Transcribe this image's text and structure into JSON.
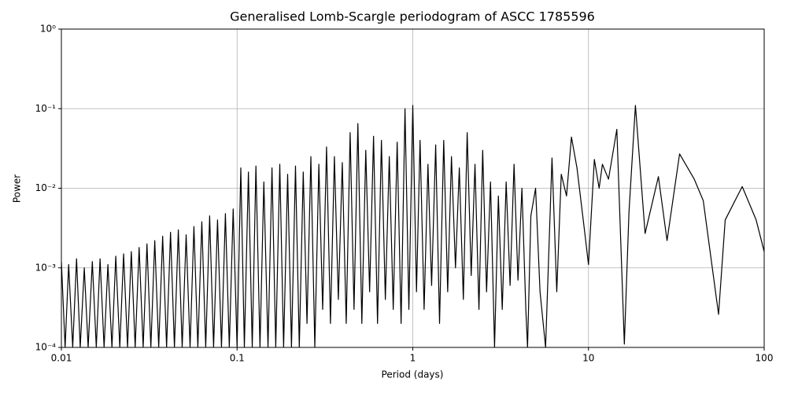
{
  "chart_data": {
    "type": "line",
    "title": "Generalised Lomb-Scargle periodogram of ASCC 1785596",
    "x_label": "Period (days)",
    "y_label": "Power",
    "x_scale": "log",
    "y_scale": "log",
    "grid": true,
    "xlim": [
      0.01,
      100
    ],
    "ylim": [
      0.0001,
      1
    ],
    "xticks": [
      0.01,
      0.1,
      1,
      10,
      100
    ],
    "yticks": [
      {
        "value": 0.0001,
        "label": "10⁻⁴"
      },
      {
        "value": 0.001,
        "label": "10⁻³"
      },
      {
        "value": 0.01,
        "label": "10⁻²"
      },
      {
        "value": 0.1,
        "label": "10⁻¹"
      },
      {
        "value": 1,
        "label": "10⁰"
      }
    ],
    "color": "#000000",
    "x": [
      0.01,
      0.0105,
      0.011,
      0.0116,
      0.0122,
      0.0128,
      0.0135,
      0.0142,
      0.015,
      0.0158,
      0.0166,
      0.0175,
      0.0184,
      0.0194,
      0.0204,
      0.0215,
      0.0226,
      0.0238,
      0.025,
      0.0263,
      0.0277,
      0.0292,
      0.0307,
      0.0323,
      0.034,
      0.0358,
      0.0377,
      0.0397,
      0.0418,
      0.044,
      0.0463,
      0.0487,
      0.0513,
      0.054,
      0.0568,
      0.0598,
      0.063,
      0.0663,
      0.0698,
      0.0735,
      0.0774,
      0.0815,
      0.0858,
      0.0903,
      0.095,
      0.1,
      0.105,
      0.11,
      0.116,
      0.122,
      0.128,
      0.135,
      0.142,
      0.15,
      0.158,
      0.166,
      0.175,
      0.184,
      0.194,
      0.204,
      0.215,
      0.226,
      0.238,
      0.25,
      0.263,
      0.277,
      0.292,
      0.307,
      0.323,
      0.34,
      0.358,
      0.377,
      0.397,
      0.418,
      0.44,
      0.463,
      0.487,
      0.513,
      0.54,
      0.568,
      0.598,
      0.63,
      0.663,
      0.698,
      0.735,
      0.774,
      0.815,
      0.858,
      0.903,
      0.95,
      1.0,
      1.05,
      1.1,
      1.16,
      1.22,
      1.28,
      1.35,
      1.42,
      1.5,
      1.58,
      1.66,
      1.75,
      1.84,
      1.94,
      2.04,
      2.15,
      2.26,
      2.38,
      2.5,
      2.63,
      2.77,
      2.92,
      3.07,
      3.23,
      3.4,
      3.58,
      3.77,
      3.97,
      4.18,
      4.4,
      4.5,
      4.7,
      5.0,
      5.3,
      5.7,
      6.2,
      6.6,
      7,
      7.5,
      8,
      8.6,
      9.5,
      10,
      10.8,
      11.5,
      12,
      13,
      14.5,
      16,
      17,
      18.5,
      21,
      25,
      28,
      33,
      40,
      45,
      55,
      60,
      75,
      90,
      100
    ],
    "values": [
      0.0012,
      0.0001,
      0.0011,
      0.0001,
      0.0013,
      0.0001,
      0.001,
      0.0001,
      0.0012,
      0.0001,
      0.0013,
      0.0001,
      0.0011,
      0.0001,
      0.0014,
      0.0001,
      0.0015,
      0.0001,
      0.0016,
      0.0001,
      0.0018,
      0.0001,
      0.002,
      0.0001,
      0.0022,
      0.0001,
      0.0025,
      0.0001,
      0.0028,
      0.0001,
      0.003,
      0.0001,
      0.0026,
      0.0001,
      0.0033,
      0.0001,
      0.0038,
      0.0001,
      0.0045,
      0.0001,
      0.004,
      0.0001,
      0.0048,
      0.0001,
      0.0055,
      0.0001,
      0.018,
      0.0001,
      0.016,
      0.0001,
      0.019,
      0.0001,
      0.012,
      0.0001,
      0.018,
      0.0001,
      0.02,
      0.0001,
      0.015,
      0.0001,
      0.019,
      0.0001,
      0.016,
      0.0002,
      0.025,
      0.0001,
      0.02,
      0.0003,
      0.033,
      0.0002,
      0.025,
      0.0004,
      0.021,
      0.0002,
      0.05,
      0.0003,
      0.065,
      0.0002,
      0.03,
      0.0005,
      0.045,
      0.0002,
      0.04,
      0.0004,
      0.025,
      0.0003,
      0.038,
      0.0002,
      0.1,
      0.0003,
      0.11,
      0.0005,
      0.04,
      0.0003,
      0.02,
      0.0006,
      0.035,
      0.0002,
      0.04,
      0.0005,
      0.025,
      0.001,
      0.018,
      0.0004,
      0.05,
      0.0008,
      0.02,
      0.0003,
      0.03,
      0.0005,
      0.012,
      0.0001,
      0.008,
      0.0003,
      0.012,
      0.0006,
      0.02,
      0.0007,
      0.01,
      0.0003,
      0.0001,
      0.0045,
      0.01,
      0.0005,
      0.0001,
      0.024,
      0.0005,
      0.015,
      0.008,
      0.044,
      0.018,
      0.0029,
      0.0011,
      0.023,
      0.01,
      0.02,
      0.013,
      0.055,
      0.00011,
      0.005,
      0.11,
      0.0027,
      0.014,
      0.0022,
      0.027,
      0.013,
      0.007,
      0.00026,
      0.004,
      0.0105,
      0.004,
      0.0016
    ]
  }
}
